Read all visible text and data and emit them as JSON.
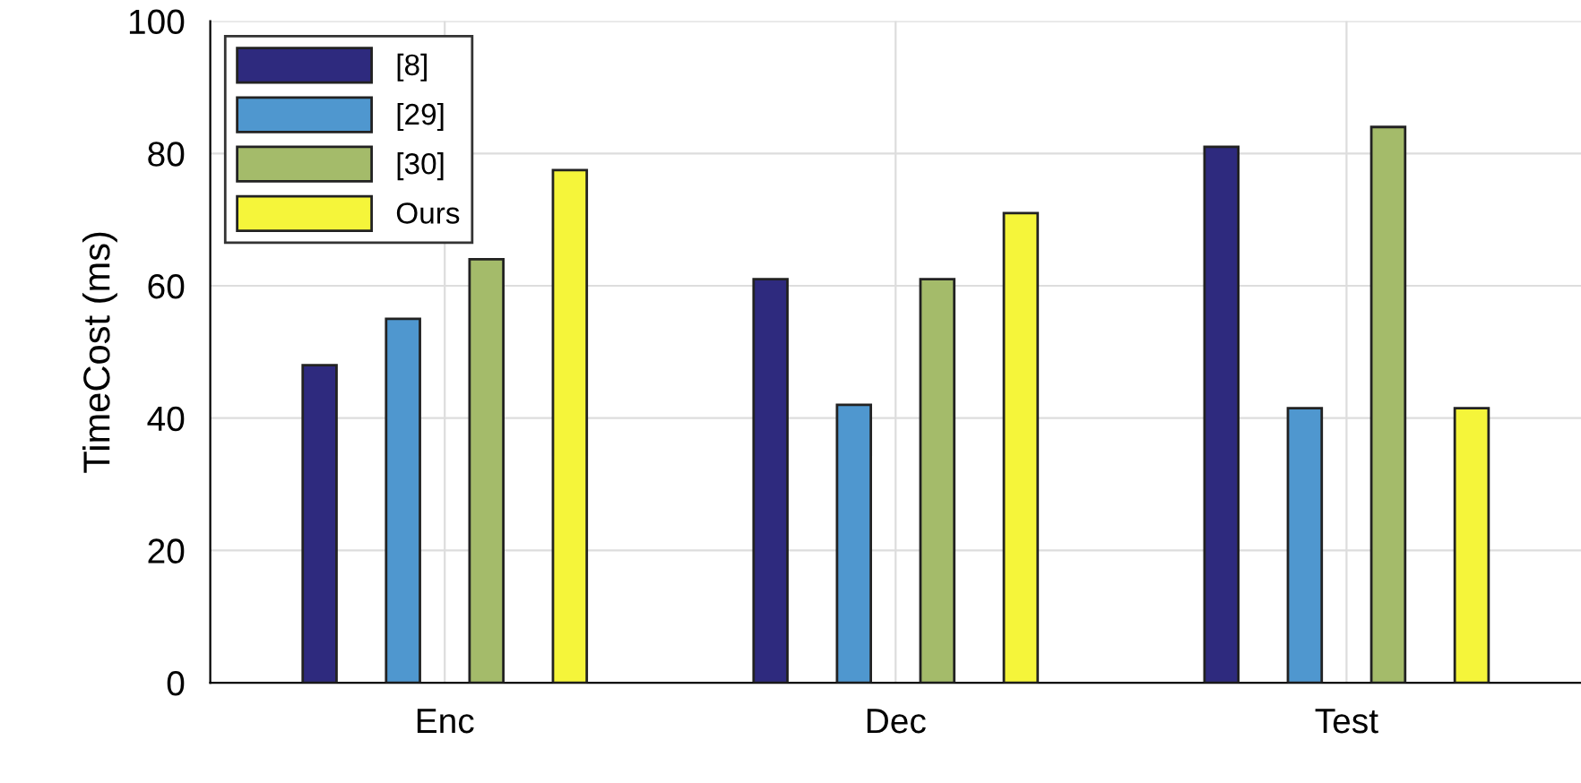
{
  "chart_data": {
    "type": "bar",
    "ylabel": "TimeCost (ms)",
    "categories": [
      "Enc",
      "Dec",
      "Test"
    ],
    "series": [
      {
        "name": "[8]",
        "color": "#2e2a7e",
        "values": [
          48,
          61,
          81
        ]
      },
      {
        "name": "[29]",
        "color": "#4f97cf",
        "values": [
          55,
          42,
          41.5
        ]
      },
      {
        "name": "[30]",
        "color": "#a4bb6a",
        "values": [
          64,
          61,
          84
        ]
      },
      {
        "name": "Ours",
        "color": "#f5f53a",
        "values": [
          77.5,
          71,
          41.5
        ]
      }
    ],
    "ylim": [
      0,
      100
    ],
    "yticks": [
      0,
      20,
      40,
      60,
      80,
      100
    ],
    "grid": true,
    "legend": "top left"
  }
}
